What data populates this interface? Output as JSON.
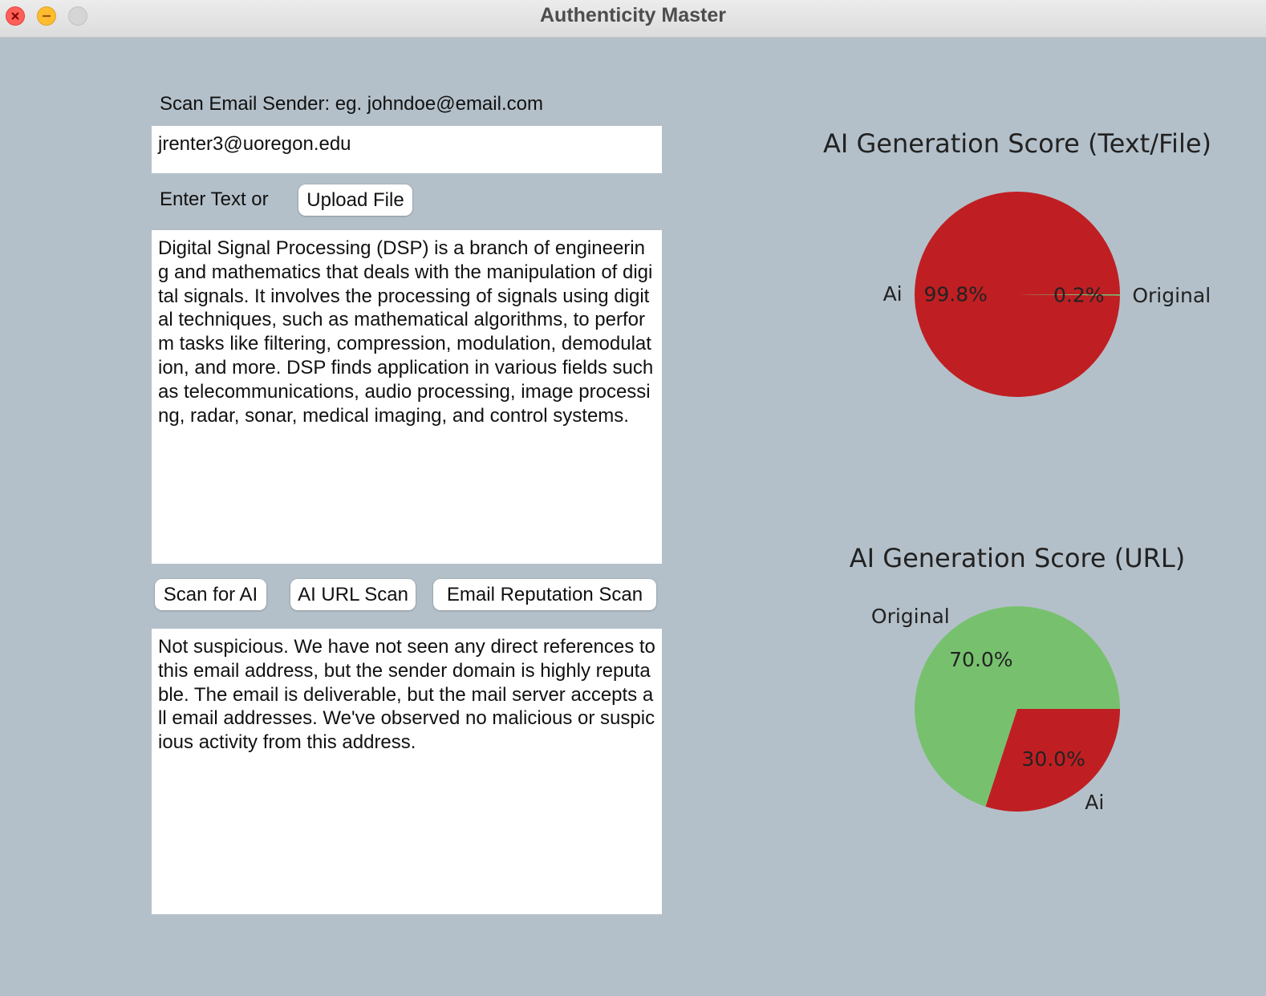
{
  "window": {
    "title": "Authenticity Master"
  },
  "email_section": {
    "label": "Scan Email Sender: eg.  johndoe@email.com",
    "value": "jrenter3@uoregon.edu"
  },
  "text_section": {
    "label": "Enter Text or",
    "upload_label": "Upload File",
    "value": "Digital Signal Processing (DSP) is a branch of engineering and mathematics that deals with the manipulation of digital signals. It involves the processing of signals using digital techniques, such as mathematical algorithms, to perform tasks like filtering, compression, modulation, demodulation, and more. DSP finds application in various fields such as telecommunications, audio processing, image processing, radar, sonar, medical imaging, and control systems."
  },
  "actions": {
    "scan_ai_label": "Scan for AI",
    "url_scan_label": "AI URL Scan",
    "email_rep_label": "Email Reputation Scan"
  },
  "result": {
    "value": "Not suspicious. We have not seen any direct references to this email address, but the sender domain is highly reputable. The email is deliverable, but the mail server accepts all email addresses. We've observed no malicious or suspicious activity from this address."
  },
  "chart_data": [
    {
      "type": "pie",
      "title": "AI Generation Score (Text/File)",
      "labels": [
        "Ai",
        "Original"
      ],
      "values": [
        99.8,
        0.2
      ],
      "value_labels": [
        "99.8%",
        "0.2%"
      ],
      "colors": [
        "#bf1f23",
        "#77c16e"
      ]
    },
    {
      "type": "pie",
      "title": "AI Generation Score (URL)",
      "labels": [
        "Ai",
        "Original"
      ],
      "values": [
        30.0,
        70.0
      ],
      "value_labels": [
        "30.0%",
        "70.0%"
      ],
      "colors": [
        "#bf1f23",
        "#77c16e"
      ]
    }
  ]
}
